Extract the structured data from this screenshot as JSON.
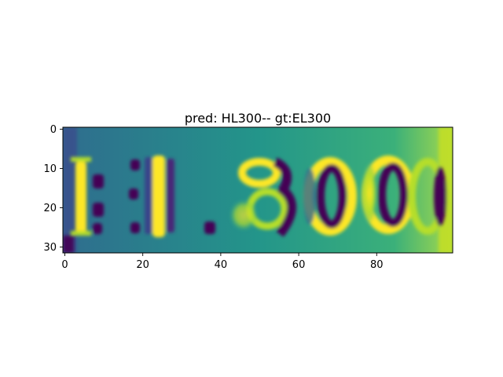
{
  "figure": {
    "title": "pred: HL300-- gt:EL300",
    "x_ticks": [
      {
        "value": 0,
        "label": "0"
      },
      {
        "value": 20,
        "label": "20"
      },
      {
        "value": 40,
        "label": "40"
      },
      {
        "value": 60,
        "label": "60"
      },
      {
        "value": 80,
        "label": "80"
      }
    ],
    "y_ticks": [
      {
        "value": 0,
        "label": "0"
      },
      {
        "value": 10,
        "label": "10"
      },
      {
        "value": 20,
        "label": "20"
      },
      {
        "value": 30,
        "label": "30"
      }
    ],
    "x_range": [
      0,
      100
    ],
    "y_range": [
      0,
      32
    ],
    "image_text": "EL300",
    "colormap": "viridis",
    "colors": {
      "dark": "#440154",
      "mid": "#21908c",
      "bright": "#fde725"
    }
  }
}
